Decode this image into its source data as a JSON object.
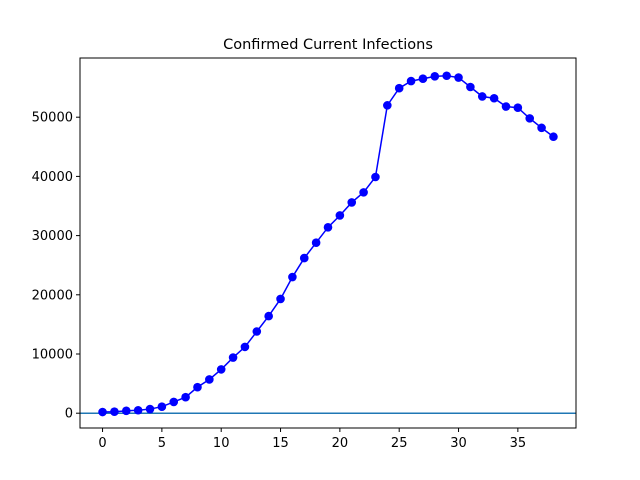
{
  "chart_data": {
    "type": "line",
    "title": "Confirmed Current Infections",
    "xlabel": "",
    "ylabel": "",
    "xlim": [
      -1.9,
      39.9
    ],
    "ylim": [
      -2500,
      60000
    ],
    "xticks": [
      0,
      5,
      10,
      15,
      20,
      25,
      30,
      35
    ],
    "yticks": [
      0,
      10000,
      20000,
      30000,
      40000,
      50000
    ],
    "grid": false,
    "hline": {
      "y": 0,
      "color": "#1f77b4"
    },
    "series": [
      {
        "color": "#0000ff",
        "marker": "circle",
        "x": [
          0,
          1,
          2,
          3,
          4,
          5,
          6,
          7,
          8,
          9,
          10,
          11,
          12,
          13,
          14,
          15,
          16,
          17,
          18,
          19,
          20,
          21,
          22,
          23,
          24,
          25,
          26,
          27,
          28,
          29,
          30,
          31,
          32,
          33,
          34,
          35,
          36,
          37,
          38
        ],
        "y": [
          200,
          250,
          400,
          500,
          700,
          1100,
          1900,
          2700,
          4400,
          5700,
          7400,
          9400,
          11200,
          13800,
          16400,
          19300,
          23000,
          26200,
          28800,
          31400,
          33400,
          35600,
          37300,
          39900,
          52000,
          54900,
          56100,
          56500,
          56900,
          57000,
          56700,
          55100,
          53500,
          53200,
          51800,
          51600,
          49800,
          48200,
          46700
        ]
      }
    ]
  }
}
